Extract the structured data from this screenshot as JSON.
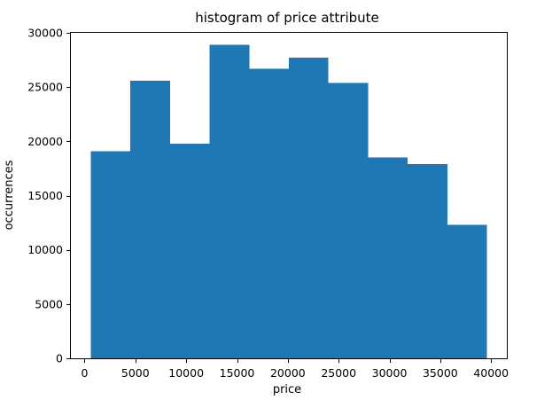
{
  "chart_data": {
    "type": "bar",
    "title": "histogram of price attribute",
    "xlabel": "price",
    "ylabel": "occurrences",
    "bin_edges": [
      600,
      4500,
      8400,
      12300,
      16200,
      20100,
      24000,
      27900,
      31800,
      35700,
      39600
    ],
    "values": [
      19100,
      25600,
      19800,
      28900,
      26700,
      27700,
      25400,
      18500,
      17900,
      12300
    ],
    "xlim": [
      -1350,
      41550
    ],
    "ylim": [
      0,
      30000
    ],
    "xticks": [
      0,
      5000,
      10000,
      15000,
      20000,
      25000,
      30000,
      35000,
      40000
    ],
    "yticks": [
      0,
      5000,
      10000,
      15000,
      20000,
      25000,
      30000
    ],
    "bar_color": "#1f77b4",
    "grid": false,
    "legend": "none"
  }
}
